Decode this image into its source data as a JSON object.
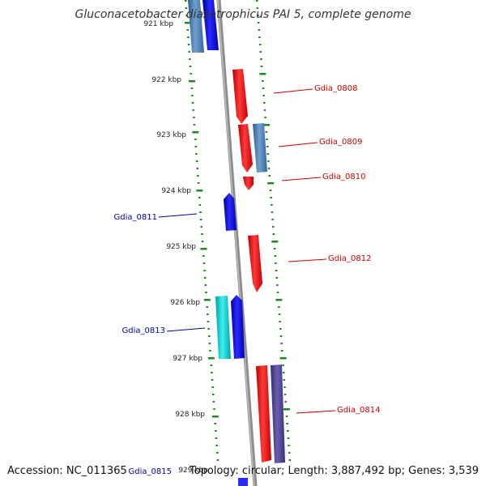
{
  "title": "Gluconacetobacter diazotrophicus PAI 5, complete genome",
  "footer": {
    "accession": "Accession: NC_011365",
    "topology": "Topology: circular; Length: 3,887,492 bp; Genes: 3,539"
  },
  "ruler": {
    "labels": [
      "921 kbp",
      "922 kbp",
      "923 kbp",
      "924 kbp",
      "925 kbp",
      "926 kbp",
      "927 kbp",
      "928 kbp",
      "929 kbp"
    ]
  },
  "genes": {
    "gdia_0808": "Gdia_0808",
    "gdia_0809": "Gdia_0809",
    "gdia_0810": "Gdia_0810",
    "gdia_0811": "Gdia_0811",
    "gdia_0812": "Gdia_0812",
    "gdia_0813": "Gdia_0813",
    "gdia_0814": "Gdia_0814",
    "gdia_0815": "Gdia_0815"
  },
  "colors": {
    "forward_label": "#cc0000",
    "reverse_label": "#0000aa",
    "red_cds": "#ff0000",
    "blue_cds": "#0000ee",
    "steel_cds": "#4a7fb0",
    "cyan_cds": "#00c8c8",
    "slate_cds": "#4a3f8a",
    "backbone": "#8c8c8c",
    "track_dots": "#1e8a1e"
  }
}
